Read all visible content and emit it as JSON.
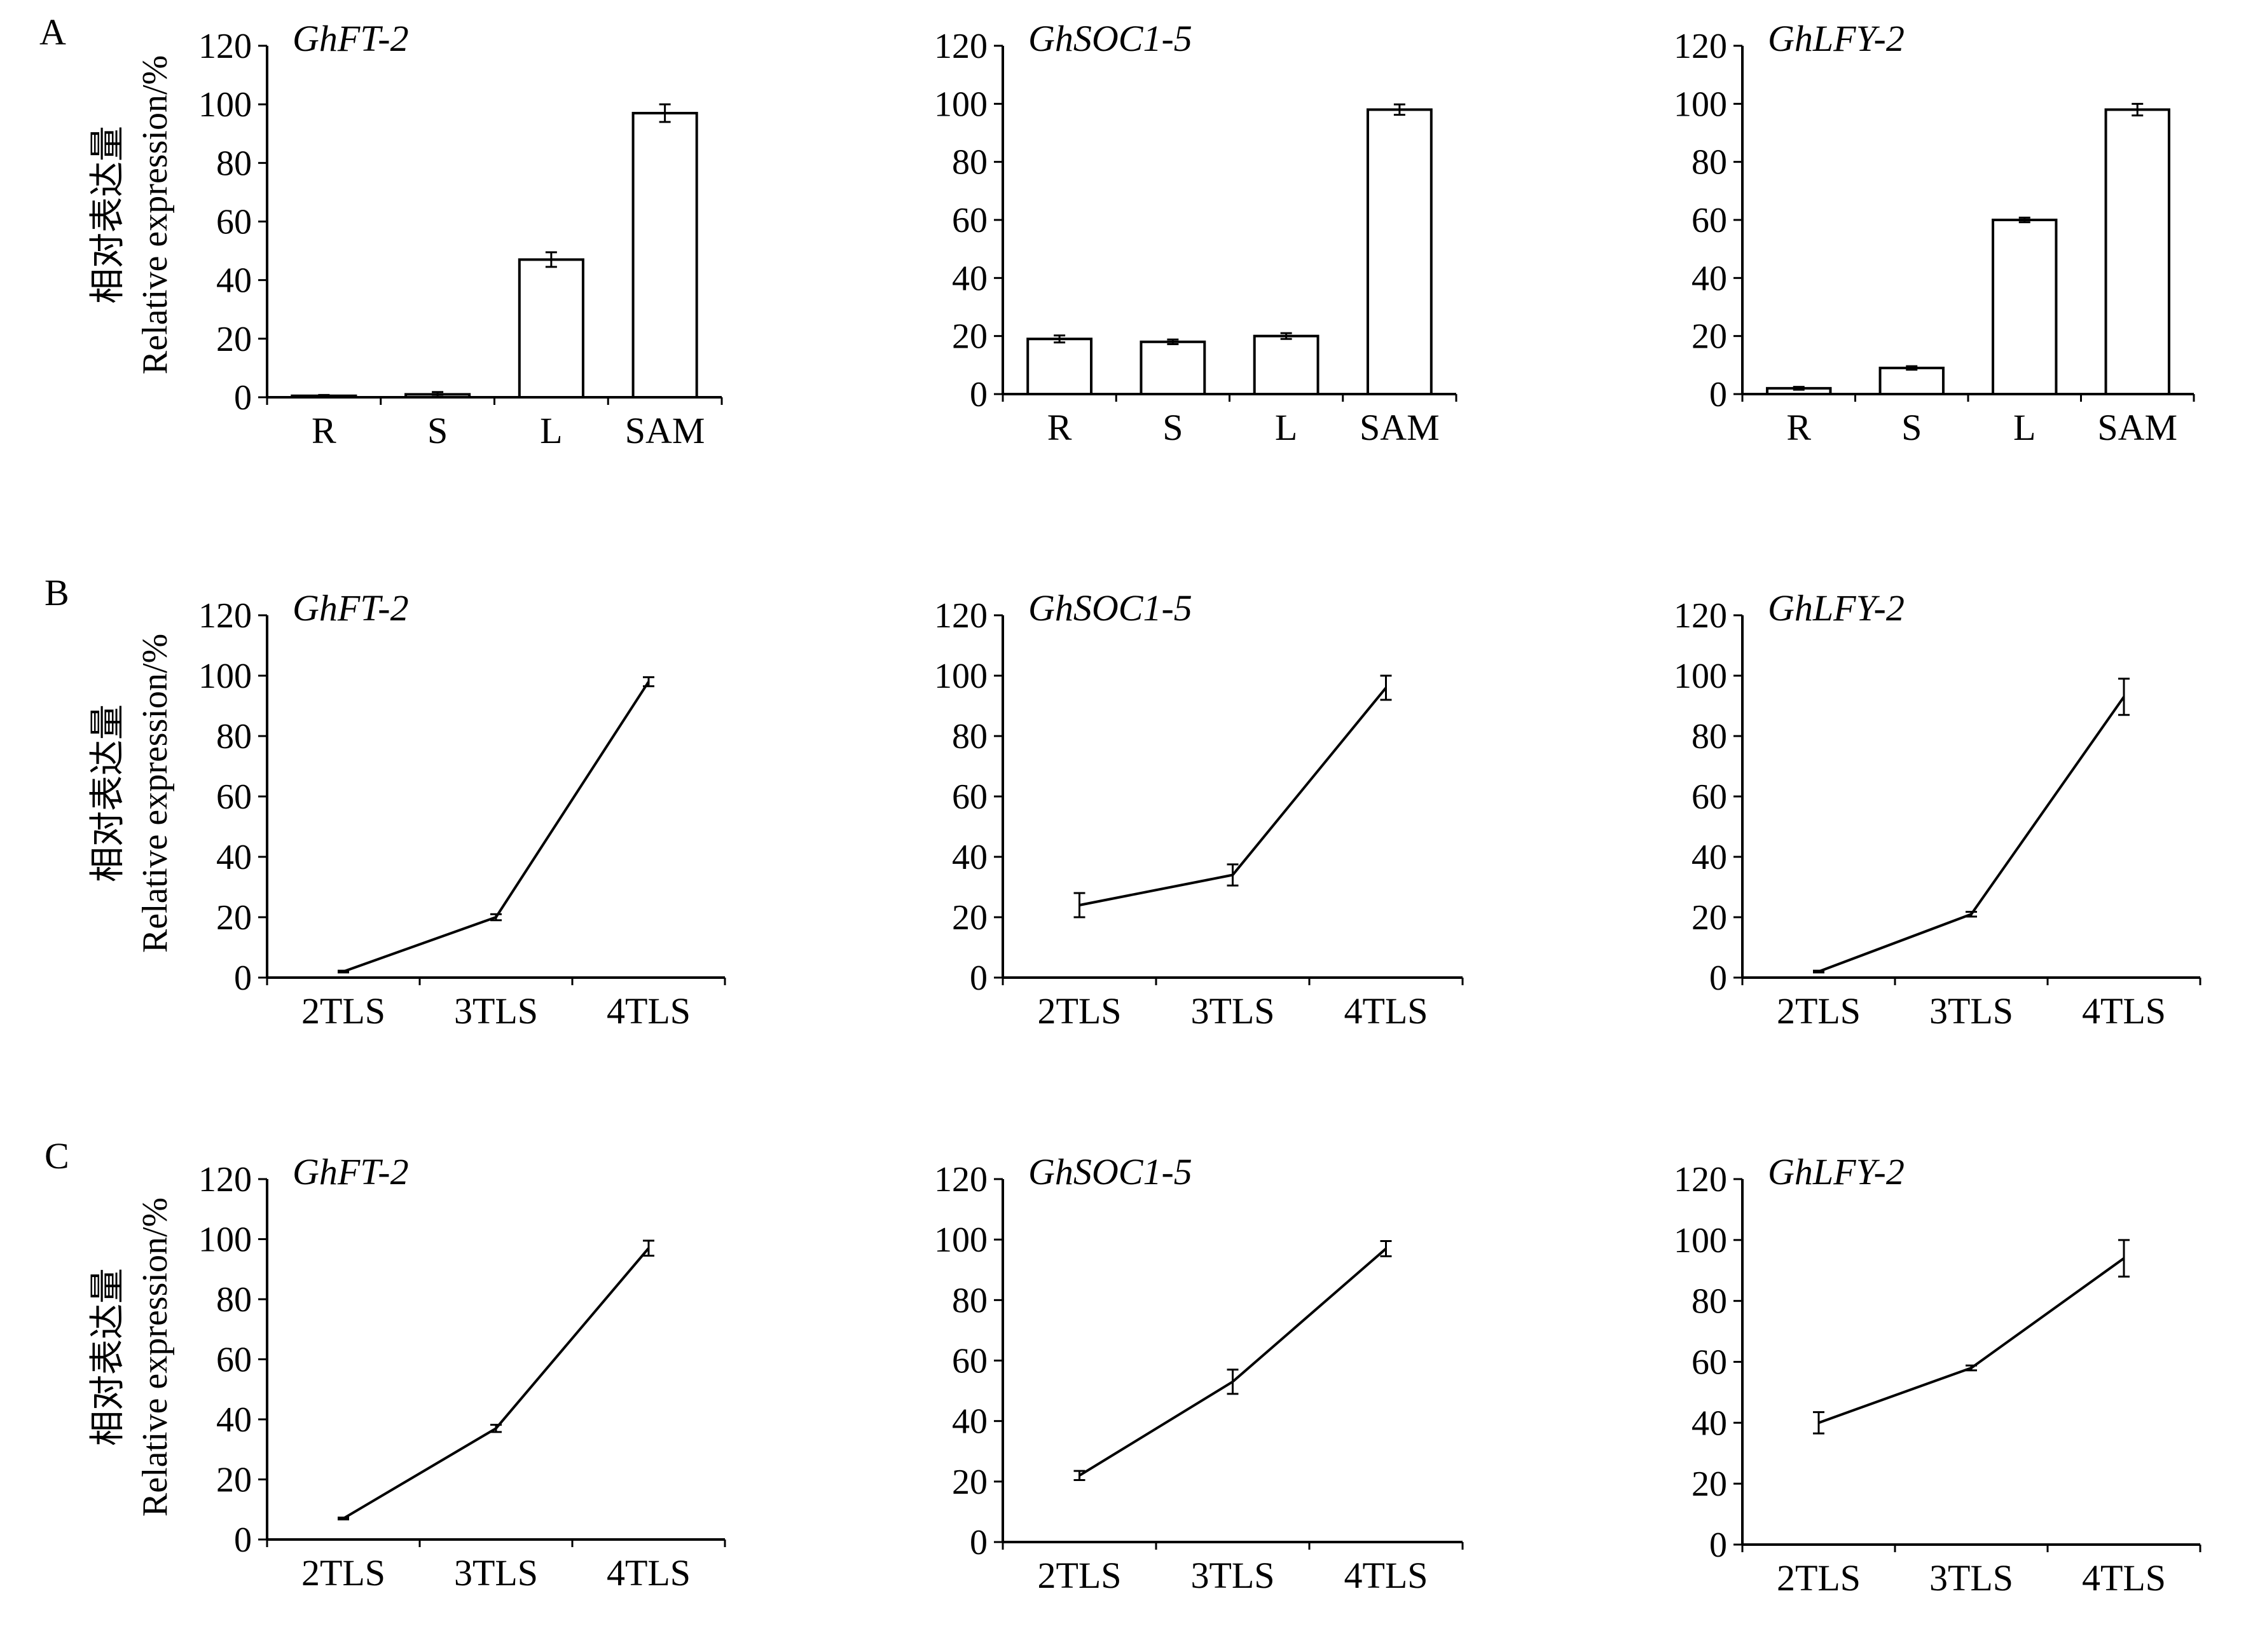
{
  "figure": {
    "panel_letters": [
      "A",
      "B",
      "C"
    ],
    "y_label_cn": "相对表达量",
    "y_label_en": "Relative expression/%"
  },
  "chart_data": [
    {
      "panel": "A",
      "gene": "GhFT-2",
      "type": "bar",
      "categories": [
        "R",
        "S",
        "L",
        "SAM"
      ],
      "values": [
        0.5,
        1,
        47,
        97
      ],
      "errors": [
        0.3,
        0.8,
        2.5,
        3
      ],
      "ylim": [
        0,
        120
      ],
      "yticks": [
        0,
        20,
        40,
        60,
        80,
        100,
        120
      ]
    },
    {
      "panel": "A",
      "gene": "GhSOC1-5",
      "type": "bar",
      "categories": [
        "R",
        "S",
        "L",
        "SAM"
      ],
      "values": [
        19,
        18,
        20,
        98
      ],
      "errors": [
        1.2,
        0.8,
        1.0,
        1.8
      ],
      "ylim": [
        0,
        120
      ],
      "yticks": [
        0,
        20,
        40,
        60,
        80,
        100,
        120
      ]
    },
    {
      "panel": "A",
      "gene": "GhLFY-2",
      "type": "bar",
      "categories": [
        "R",
        "S",
        "L",
        "SAM"
      ],
      "values": [
        2,
        9,
        60,
        98
      ],
      "errors": [
        0.5,
        0.6,
        0.8,
        2.0
      ],
      "ylim": [
        0,
        120
      ],
      "yticks": [
        0,
        20,
        40,
        60,
        80,
        100,
        120
      ]
    },
    {
      "panel": "B",
      "gene": "GhFT-2",
      "type": "line",
      "categories": [
        "2TLS",
        "3TLS",
        "4TLS"
      ],
      "values": [
        2,
        20,
        98
      ],
      "errors": [
        0.3,
        1.0,
        1.5
      ],
      "ylim": [
        0,
        120
      ],
      "yticks": [
        0,
        20,
        40,
        60,
        80,
        100,
        120
      ]
    },
    {
      "panel": "B",
      "gene": "GhSOC1-5",
      "type": "line",
      "categories": [
        "2TLS",
        "3TLS",
        "4TLS"
      ],
      "values": [
        24,
        34,
        96
      ],
      "errors": [
        4,
        3.5,
        4
      ],
      "ylim": [
        0,
        120
      ],
      "yticks": [
        0,
        20,
        40,
        60,
        80,
        100,
        120
      ]
    },
    {
      "panel": "B",
      "gene": "GhLFY-2",
      "type": "line",
      "categories": [
        "2TLS",
        "3TLS",
        "4TLS"
      ],
      "values": [
        2,
        21,
        93
      ],
      "errors": [
        0.3,
        0.8,
        6
      ],
      "ylim": [
        0,
        120
      ],
      "yticks": [
        0,
        20,
        40,
        60,
        80,
        100,
        120
      ]
    },
    {
      "panel": "C",
      "gene": "GhFT-2",
      "type": "line",
      "categories": [
        "2TLS",
        "3TLS",
        "4TLS"
      ],
      "values": [
        7,
        37,
        97
      ],
      "errors": [
        0.3,
        1.2,
        2.5
      ],
      "ylim": [
        0,
        120
      ],
      "yticks": [
        0,
        20,
        40,
        60,
        80,
        100,
        120
      ]
    },
    {
      "panel": "C",
      "gene": "GhSOC1-5",
      "type": "line",
      "categories": [
        "2TLS",
        "3TLS",
        "4TLS"
      ],
      "values": [
        22,
        53,
        97
      ],
      "errors": [
        1.5,
        4,
        2.5
      ],
      "ylim": [
        0,
        120
      ],
      "yticks": [
        0,
        20,
        40,
        60,
        80,
        100,
        120
      ]
    },
    {
      "panel": "C",
      "gene": "GhLFY-2",
      "type": "line",
      "categories": [
        "2TLS",
        "3TLS",
        "4TLS"
      ],
      "values": [
        40,
        58,
        94
      ],
      "errors": [
        3.5,
        0.8,
        6
      ],
      "ylim": [
        0,
        120
      ],
      "yticks": [
        0,
        20,
        40,
        60,
        80,
        100,
        120
      ]
    }
  ]
}
